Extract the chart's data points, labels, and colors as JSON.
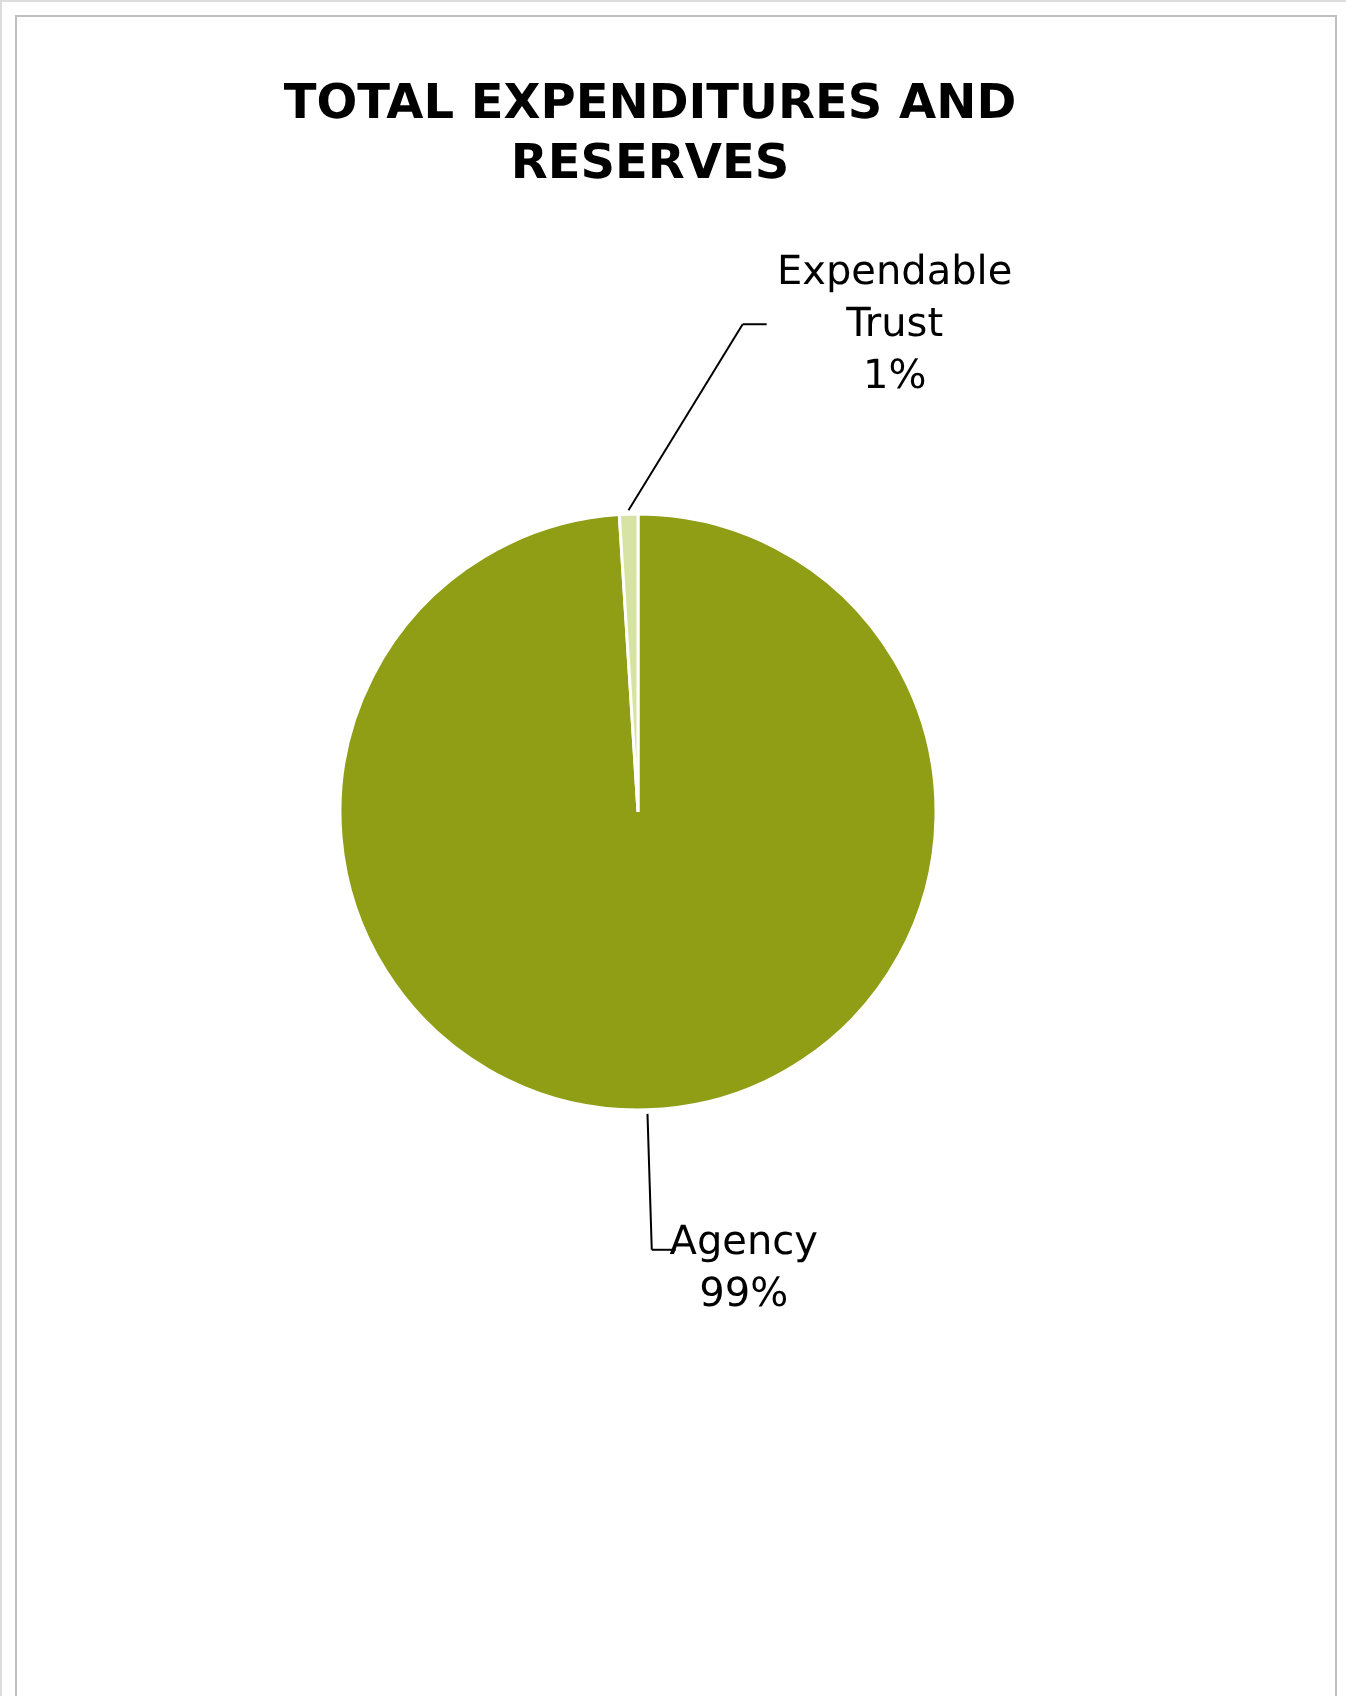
{
  "chart_data": {
    "type": "pie",
    "title": "TOTAL EXPENDITURES AND RESERVES",
    "categories": [
      "Agency",
      "Expendable Trust"
    ],
    "values": [
      99,
      1
    ],
    "value_labels": [
      "99%",
      "1%"
    ],
    "colors": [
      "#8f9e14",
      "#d7e3a3"
    ]
  }
}
